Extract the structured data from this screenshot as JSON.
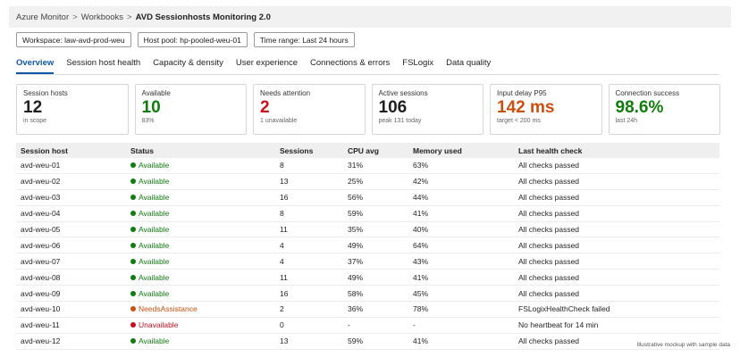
{
  "breadcrumb": {
    "items": [
      "Azure Monitor",
      "Workbooks"
    ],
    "separator": ">",
    "current": "AVD Sessionhosts Monitoring 2.0"
  },
  "params": [
    {
      "label": "Workspace: law-avd-prod-weu"
    },
    {
      "label": "Host pool: hp-pooled-weu-01"
    },
    {
      "label": "Time range: Last 24 hours"
    }
  ],
  "tabs": [
    {
      "label": "Overview",
      "active": true
    },
    {
      "label": "Session host health",
      "active": false
    },
    {
      "label": "Capacity & density",
      "active": false
    },
    {
      "label": "User experience",
      "active": false
    },
    {
      "label": "Connections & errors",
      "active": false
    },
    {
      "label": "FSLogix",
      "active": false
    },
    {
      "label": "Data quality",
      "active": false
    }
  ],
  "cards": [
    {
      "label": "Session hosts",
      "value": "12",
      "sub": "in scope",
      "color": "#1f1f1f"
    },
    {
      "label": "Available",
      "value": "10",
      "sub": "83%",
      "color": "#107c10"
    },
    {
      "label": "Needs attention",
      "value": "2",
      "sub": "1 unavailable",
      "color": "#c50f1f"
    },
    {
      "label": "Active sessions",
      "value": "106",
      "sub": "peak 131 today",
      "color": "#1f1f1f"
    },
    {
      "label": "Input delay P95",
      "value": "142 ms",
      "sub": "target < 200 ms",
      "color": "#ca5010"
    },
    {
      "label": "Connection success",
      "value": "98.6%",
      "sub": "last 24h",
      "color": "#107c10"
    }
  ],
  "table": {
    "headers": {
      "host": "Session host",
      "status": "Status",
      "sessions": "Sessions",
      "cpu": "CPU avg",
      "memory": "Memory used",
      "check": "Last health check"
    },
    "status_colors": {
      "Available": "#107c10",
      "NeedsAssistance": "#ca5010",
      "Unavailable": "#c50f1f"
    },
    "rows": [
      {
        "host": "avd-weu-01",
        "status": "Available",
        "sessions": "8",
        "cpu": "31%",
        "memory": "63%",
        "check": "All checks passed"
      },
      {
        "host": "avd-weu-02",
        "status": "Available",
        "sessions": "13",
        "cpu": "25%",
        "memory": "42%",
        "check": "All checks passed"
      },
      {
        "host": "avd-weu-03",
        "status": "Available",
        "sessions": "16",
        "cpu": "56%",
        "memory": "44%",
        "check": "All checks passed"
      },
      {
        "host": "avd-weu-04",
        "status": "Available",
        "sessions": "8",
        "cpu": "59%",
        "memory": "41%",
        "check": "All checks passed"
      },
      {
        "host": "avd-weu-05",
        "status": "Available",
        "sessions": "11",
        "cpu": "35%",
        "memory": "40%",
        "check": "All checks passed"
      },
      {
        "host": "avd-weu-06",
        "status": "Available",
        "sessions": "4",
        "cpu": "49%",
        "memory": "64%",
        "check": "All checks passed"
      },
      {
        "host": "avd-weu-07",
        "status": "Available",
        "sessions": "4",
        "cpu": "37%",
        "memory": "43%",
        "check": "All checks passed"
      },
      {
        "host": "avd-weu-08",
        "status": "Available",
        "sessions": "11",
        "cpu": "49%",
        "memory": "41%",
        "check": "All checks passed"
      },
      {
        "host": "avd-weu-09",
        "status": "Available",
        "sessions": "16",
        "cpu": "58%",
        "memory": "45%",
        "check": "All checks passed"
      },
      {
        "host": "avd-weu-10",
        "status": "NeedsAssistance",
        "sessions": "2",
        "cpu": "36%",
        "memory": "78%",
        "check": "FSLogixHealthCheck failed"
      },
      {
        "host": "avd-weu-11",
        "status": "Unavailable",
        "sessions": "0",
        "cpu": "-",
        "memory": "-",
        "check": "No heartbeat for 14 min"
      },
      {
        "host": "avd-weu-12",
        "status": "Available",
        "sessions": "13",
        "cpu": "59%",
        "memory": "41%",
        "check": "All checks passed"
      }
    ]
  },
  "footnote": "Illustrative mockup with sample data"
}
